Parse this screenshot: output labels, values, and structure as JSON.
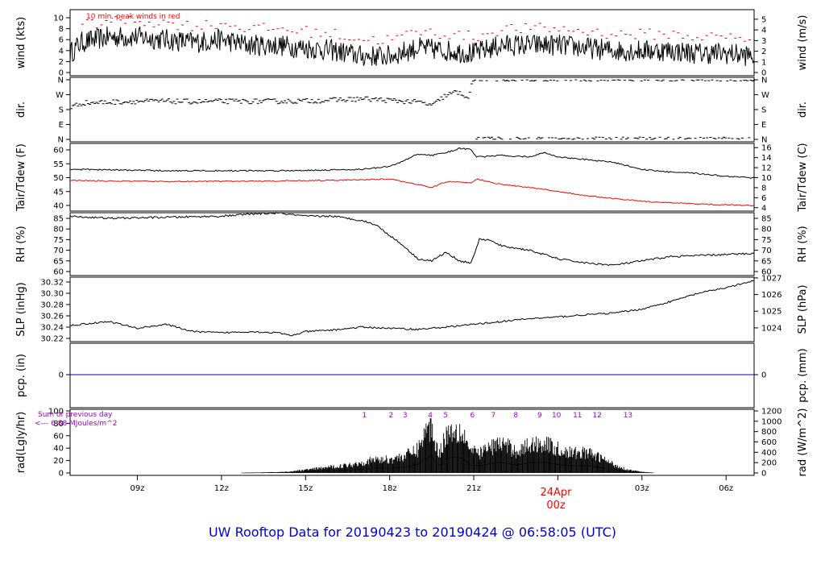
{
  "title": "UW Rooftop Data for 20190423  to  20190424 @ 06:58:05  (UTC)",
  "colors": {
    "frame": "#000000",
    "peak": "#ff0000",
    "dewpoint": "#ff0000",
    "precip": "#0000cc",
    "title": "#0000cc",
    "note": "#9900cc",
    "date_label": "#ff0000"
  },
  "x_axis": {
    "range_hours_from_18z_apr22": [
      12.6,
      37.0
    ],
    "ticks": [
      {
        "h": 15,
        "label": "09z"
      },
      {
        "h": 18,
        "label": "12z"
      },
      {
        "h": 21,
        "label": "15z"
      },
      {
        "h": 24,
        "label": "18z"
      },
      {
        "h": 27,
        "label": "21z"
      },
      {
        "h": 30,
        "label": "00z"
      },
      {
        "h": 33,
        "label": "03z"
      },
      {
        "h": 36,
        "label": "06z"
      }
    ],
    "date_label": "24Apr",
    "date_tick": "00z"
  },
  "panels": {
    "wind": {
      "ylabel_left": "wind (kts)",
      "ylabel_right": "wind (m/s)",
      "left_ticks": [
        "0",
        "2",
        "4",
        "6",
        "8",
        "10"
      ],
      "right_ticks": [
        "0",
        "1",
        "2",
        "3",
        "4",
        "5"
      ],
      "note": "10 min. peak winds in red"
    },
    "dir": {
      "ylabel_left": "dir.",
      "ylabel_right": "dir.",
      "ticks": [
        "N",
        "E",
        "S",
        "W",
        "N"
      ]
    },
    "temp": {
      "ylabel_left": "Tair/Tdew (F)",
      "ylabel_right": "Tair/Tdew (C)",
      "left_ticks": [
        "40",
        "45",
        "50",
        "55",
        "60"
      ],
      "right_ticks": [
        "4",
        "6",
        "8",
        "10",
        "12",
        "14",
        "16"
      ]
    },
    "rh": {
      "ylabel_left": "RH (%)",
      "ylabel_right": "RH (%)",
      "ticks": [
        "60",
        "65",
        "70",
        "75",
        "80",
        "85"
      ]
    },
    "slp": {
      "ylabel_left": "SLP (inHg)",
      "ylabel_right": "SLP (hPa)",
      "left_ticks": [
        "30.22",
        "30.24",
        "30.26",
        "30.28",
        "30.30",
        "30.32"
      ],
      "right_ticks": [
        "1024",
        "1025",
        "1026",
        "1027"
      ]
    },
    "pcp": {
      "ylabel_left": "pcp. (in)",
      "ylabel_right": "pcp. (mm)",
      "left_ticks": [
        "0"
      ],
      "right_ticks": [
        "0"
      ]
    },
    "rad": {
      "ylabel_left": "rad(Lgly/hr)",
      "ylabel_right": "rad (W/m^2)",
      "left_ticks": [
        "0",
        "20",
        "40",
        "60",
        "80",
        "100"
      ],
      "right_ticks": [
        "0",
        "200",
        "400",
        "600",
        "800",
        "1000",
        "1200"
      ],
      "note_line1": "Sum of previous day",
      "note_line2": "<--- 6.88 MJoules/m^2",
      "markers": [
        "1",
        "2",
        "3",
        "4",
        "5",
        "6",
        "7",
        "8",
        "9",
        "10",
        "11",
        "12",
        "13"
      ]
    }
  },
  "chart_data": {
    "type": "line",
    "x_units": "hours since 2019-04-22 18z (UTC)",
    "series": [
      {
        "panel": "wind",
        "units": "kts",
        "x": [
          12.6,
          13,
          14,
          15,
          16,
          17,
          18,
          19,
          20,
          21,
          22,
          23,
          24,
          25,
          26,
          27,
          28,
          29,
          30,
          31,
          32,
          33,
          34,
          35,
          36,
          37
        ],
        "values": [
          3.5,
          5.5,
          6.5,
          6.5,
          6.0,
          5.5,
          6.0,
          5.0,
          5.0,
          4.5,
          4.0,
          3.0,
          3.0,
          4.5,
          4.0,
          3.5,
          5.0,
          5.0,
          5.0,
          4.5,
          4.0,
          4.0,
          4.0,
          3.5,
          3.5,
          3.0
        ]
      },
      {
        "panel": "wind",
        "name": "10 min. peak winds in red",
        "units": "kts",
        "x": [
          13,
          14,
          15,
          16,
          17,
          18,
          19,
          20,
          21,
          22,
          23,
          24,
          25,
          26,
          27,
          28,
          29,
          30,
          31,
          32,
          33,
          34,
          35,
          36,
          37
        ],
        "values": [
          8.5,
          9.5,
          9.5,
          9,
          8.5,
          9,
          8,
          8,
          7.5,
          7,
          6,
          6,
          7.5,
          7,
          6.5,
          8,
          8,
          8,
          7.5,
          7,
          7,
          7,
          6.5,
          6.5,
          6
        ]
      },
      {
        "panel": "dir",
        "units": "deg",
        "x": [
          12.6,
          13,
          14,
          15,
          16,
          17,
          18,
          19,
          20,
          21,
          22,
          23,
          24,
          25,
          25.5,
          25.9,
          26.3,
          26.6,
          26.8,
          26.9,
          27.5,
          28,
          30,
          32,
          34,
          36,
          37
        ],
        "values": [
          195,
          220,
          225,
          230,
          230,
          228,
          230,
          230,
          230,
          232,
          238,
          245,
          235,
          225,
          205,
          260,
          285,
          270,
          250,
          355,
          360,
          355,
          358,
          360,
          360,
          358,
          358
        ]
      },
      {
        "panel": "temp",
        "name": "Tair",
        "units": "F",
        "x": [
          12.6,
          14,
          16,
          18,
          20,
          22,
          23,
          24,
          24.5,
          25,
          25.5,
          26,
          26.5,
          26.9,
          27.1,
          27.3,
          28,
          29,
          29.5,
          30,
          31,
          32,
          33,
          34,
          35,
          36,
          37
        ],
        "values": [
          53,
          52.8,
          52.5,
          52.5,
          52.5,
          52.8,
          53,
          54,
          56,
          58.5,
          58,
          59,
          60.5,
          60.2,
          57.5,
          57.5,
          58,
          57.5,
          59,
          57.5,
          56.5,
          55.5,
          53,
          52,
          51.5,
          50.5,
          50
        ]
      },
      {
        "panel": "temp",
        "name": "Tdew",
        "units": "F",
        "x": [
          12.6,
          14,
          16,
          18,
          20,
          22,
          23,
          24,
          24.5,
          25,
          25.5,
          26,
          26.5,
          26.9,
          27.1,
          28,
          29,
          30,
          31,
          32,
          33,
          34,
          35,
          36,
          37
        ],
        "values": [
          49,
          48.8,
          48.6,
          48.7,
          48.8,
          49,
          49.3,
          49.5,
          48.5,
          47.5,
          46.5,
          48.5,
          48.5,
          48,
          49.5,
          47.5,
          46.5,
          45,
          43.5,
          42.5,
          41.5,
          41,
          40.5,
          40.2,
          40
        ]
      },
      {
        "panel": "rh",
        "units": "%",
        "x": [
          12.6,
          14,
          16,
          18,
          19,
          20,
          21,
          22,
          23,
          23.5,
          24,
          24.5,
          25,
          25.5,
          26,
          26.5,
          26.9,
          27.2,
          27.5,
          28,
          29,
          30,
          31,
          32,
          33,
          34,
          35,
          36,
          37
        ],
        "values": [
          86,
          85,
          85.5,
          86,
          87,
          87.5,
          86,
          86,
          84,
          82,
          77,
          72,
          66,
          65,
          69,
          65,
          64,
          75,
          75,
          72,
          70,
          66,
          64,
          63,
          65,
          67,
          67.5,
          68,
          68.5
        ]
      },
      {
        "panel": "slp",
        "units": "inHg",
        "x": [
          12.6,
          13,
          14,
          15,
          16,
          17,
          18,
          19,
          20,
          20.5,
          21,
          22,
          23,
          24,
          25,
          26,
          27,
          28,
          29,
          30,
          31,
          32,
          33,
          34,
          35,
          36,
          37
        ],
        "values": [
          30.243,
          30.245,
          30.25,
          30.238,
          30.245,
          30.232,
          30.23,
          30.232,
          30.23,
          30.225,
          30.232,
          30.235,
          30.24,
          30.238,
          30.236,
          30.24,
          30.245,
          30.25,
          30.255,
          30.258,
          30.262,
          30.265,
          30.272,
          30.285,
          30.3,
          30.31,
          30.322
        ]
      },
      {
        "panel": "pcp",
        "units": "in",
        "x": [
          12.6,
          37
        ],
        "values": [
          0,
          0
        ]
      },
      {
        "panel": "rad",
        "units": "Lgly/hr",
        "x": [
          18.7,
          19,
          20,
          20.5,
          21,
          21.5,
          22,
          22.5,
          23,
          23.5,
          24,
          24.5,
          25,
          25.2,
          25.5,
          25.6,
          25.8,
          26,
          26.3,
          26.6,
          26.9,
          27.2,
          27.5,
          28,
          28.5,
          29,
          29.5,
          30,
          30.5,
          31,
          31.5,
          32,
          32.5,
          33,
          33.5
        ],
        "values": [
          0,
          0.5,
          1.5,
          3,
          6,
          9,
          12,
          15,
          20,
          26,
          26,
          32,
          45,
          72,
          92,
          58,
          40,
          75,
          85,
          80,
          42,
          38,
          48,
          58,
          42,
          54,
          58,
          46,
          38,
          40,
          30,
          16,
          6,
          2,
          0
        ]
      }
    ],
    "rad_markers_x": [
      23.1,
      24.05,
      24.55,
      25.45,
      26.0,
      26.95,
      27.7,
      28.5,
      29.35,
      29.95,
      30.7,
      31.4,
      32.5
    ],
    "grid": false,
    "legend": "none"
  }
}
